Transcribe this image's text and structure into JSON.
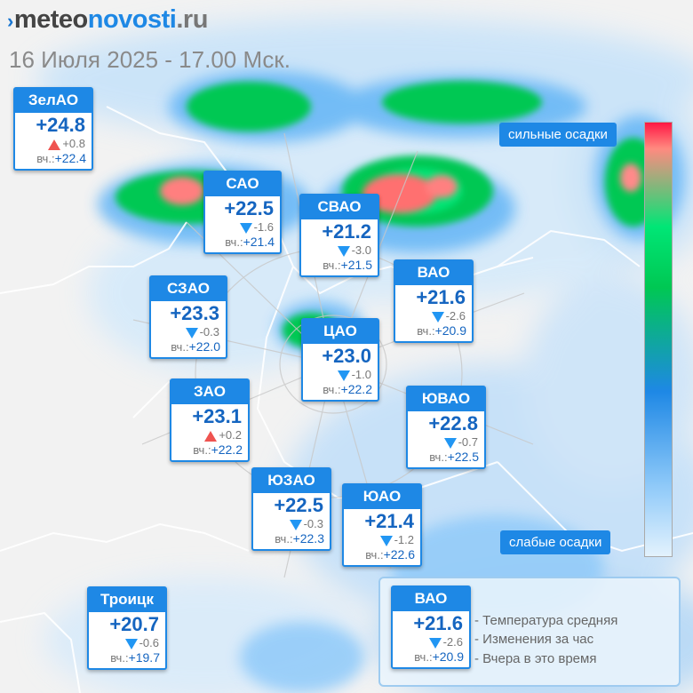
{
  "header": {
    "logo_mark": "›",
    "logo_part1": "meteo",
    "logo_part2": "novosti",
    "logo_part3": ".ru",
    "date_time": "16 Июля 2025 - 17.00 Мск."
  },
  "scale": {
    "heavy_label": "сильные осадки",
    "light_label": "слабые осадки",
    "colors": [
      "#ff1744",
      "#00e676",
      "#1e88e5",
      "#e3f2fd"
    ]
  },
  "colors": {
    "accent": "#1e88e5",
    "temp": "#1565c0",
    "down_arrow": "#2196f3",
    "up_arrow": "#ef5350"
  },
  "districts": [
    {
      "name": "ЗелАО",
      "temp": "+24.8",
      "dir": "up",
      "change": "+0.8",
      "yesterday_label": "вч.:",
      "yesterday": "+22.4"
    },
    {
      "name": "САО",
      "temp": "+22.5",
      "dir": "down",
      "change": "-1.6",
      "yesterday_label": "вч.:",
      "yesterday": "+21.4"
    },
    {
      "name": "СВАО",
      "temp": "+21.2",
      "dir": "down",
      "change": "-3.0",
      "yesterday_label": "вч.:",
      "yesterday": "+21.5"
    },
    {
      "name": "ВАО",
      "temp": "+21.6",
      "dir": "down",
      "change": "-2.6",
      "yesterday_label": "вч.:",
      "yesterday": "+20.9"
    },
    {
      "name": "СЗАО",
      "temp": "+23.3",
      "dir": "down",
      "change": "-0.3",
      "yesterday_label": "вч.:",
      "yesterday": "+22.0"
    },
    {
      "name": "ЦАО",
      "temp": "+23.0",
      "dir": "down",
      "change": "-1.0",
      "yesterday_label": "вч.:",
      "yesterday": "+22.2"
    },
    {
      "name": "ЗАО",
      "temp": "+23.1",
      "dir": "up",
      "change": "+0.2",
      "yesterday_label": "вч.:",
      "yesterday": "+22.2"
    },
    {
      "name": "ЮВАО",
      "temp": "+22.8",
      "dir": "down",
      "change": "-0.7",
      "yesterday_label": "вч.:",
      "yesterday": "+22.5"
    },
    {
      "name": "ЮЗАО",
      "temp": "+22.5",
      "dir": "down",
      "change": "-0.3",
      "yesterday_label": "вч.:",
      "yesterday": "+22.3"
    },
    {
      "name": "ЮАО",
      "temp": "+21.4",
      "dir": "down",
      "change": "-1.2",
      "yesterday_label": "вч.:",
      "yesterday": "+22.6"
    },
    {
      "name": "Троицк",
      "temp": "+20.7",
      "dir": "down",
      "change": "-0.6",
      "yesterday_label": "вч.:",
      "yesterday": "+19.7"
    }
  ],
  "legend": {
    "sample": {
      "name": "ВАО",
      "temp": "+21.6",
      "dir": "down",
      "change": "-2.6",
      "yesterday_label": "вч.:",
      "yesterday": "+20.9"
    },
    "line1": "- Температура средняя",
    "line2": "- Изменения за час",
    "line3": "- Вчера в это время"
  }
}
